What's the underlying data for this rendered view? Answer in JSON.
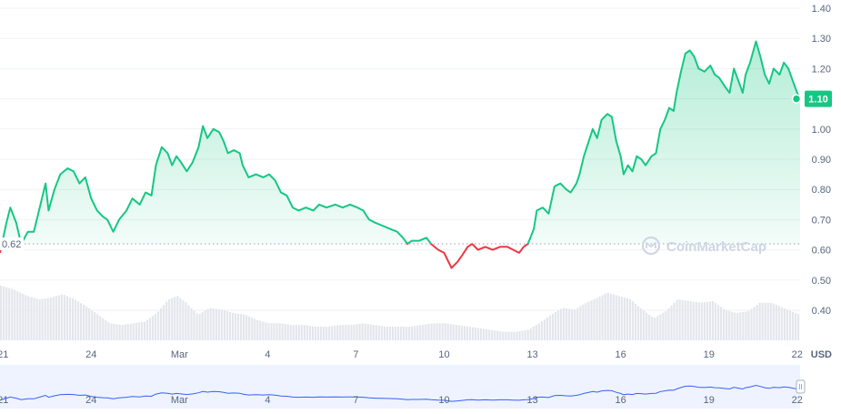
{
  "chart_data": {
    "type": "line",
    "y_unit": "USD",
    "ylim": [
      0.3,
      1.4
    ],
    "y_ticks": [
      "1.40",
      "1.30",
      "1.20",
      "1.10",
      "1.00",
      "0.90",
      "0.80",
      "0.70",
      "0.60",
      "0.50",
      "0.40"
    ],
    "x_ticks": [
      {
        "label": "21",
        "day": 0
      },
      {
        "label": "24",
        "day": 3
      },
      {
        "label": "Mar",
        "day": 6
      },
      {
        "label": "4",
        "day": 9
      },
      {
        "label": "7",
        "day": 12
      },
      {
        "label": "10",
        "day": 15
      },
      {
        "label": "13",
        "day": 18
      },
      {
        "label": "16",
        "day": 21
      },
      {
        "label": "19",
        "day": 24
      },
      {
        "label": "22",
        "day": 27
      }
    ],
    "x_range_days": [
      -0.1,
      27.1
    ],
    "baseline_value": 0.62,
    "baseline_label": "0.62",
    "current_value": 1.1,
    "current_label": "1.10",
    "price": [
      [
        -0.1,
        0.59
      ],
      [
        0.12,
        0.69
      ],
      [
        0.25,
        0.74
      ],
      [
        0.45,
        0.69
      ],
      [
        0.62,
        0.62
      ],
      [
        0.85,
        0.66
      ],
      [
        1.05,
        0.66
      ],
      [
        1.2,
        0.72
      ],
      [
        1.45,
        0.82
      ],
      [
        1.55,
        0.73
      ],
      [
        1.75,
        0.8
      ],
      [
        1.95,
        0.85
      ],
      [
        2.2,
        0.87
      ],
      [
        2.4,
        0.86
      ],
      [
        2.6,
        0.82
      ],
      [
        2.8,
        0.84
      ],
      [
        3.0,
        0.77
      ],
      [
        3.2,
        0.73
      ],
      [
        3.4,
        0.71
      ],
      [
        3.55,
        0.7
      ],
      [
        3.75,
        0.66
      ],
      [
        3.95,
        0.7
      ],
      [
        4.2,
        0.73
      ],
      [
        4.4,
        0.77
      ],
      [
        4.65,
        0.75
      ],
      [
        4.85,
        0.79
      ],
      [
        5.05,
        0.78
      ],
      [
        5.2,
        0.88
      ],
      [
        5.4,
        0.94
      ],
      [
        5.6,
        0.92
      ],
      [
        5.75,
        0.88
      ],
      [
        5.9,
        0.91
      ],
      [
        6.05,
        0.89
      ],
      [
        6.25,
        0.86
      ],
      [
        6.45,
        0.89
      ],
      [
        6.65,
        0.94
      ],
      [
        6.8,
        1.01
      ],
      [
        6.95,
        0.97
      ],
      [
        7.15,
        1.0
      ],
      [
        7.35,
        0.99
      ],
      [
        7.5,
        0.96
      ],
      [
        7.65,
        0.92
      ],
      [
        7.85,
        0.93
      ],
      [
        8.05,
        0.92
      ],
      [
        8.15,
        0.88
      ],
      [
        8.35,
        0.84
      ],
      [
        8.6,
        0.85
      ],
      [
        8.85,
        0.84
      ],
      [
        9.05,
        0.85
      ],
      [
        9.25,
        0.83
      ],
      [
        9.45,
        0.79
      ],
      [
        9.65,
        0.78
      ],
      [
        9.85,
        0.74
      ],
      [
        10.05,
        0.73
      ],
      [
        10.3,
        0.74
      ],
      [
        10.55,
        0.73
      ],
      [
        10.75,
        0.75
      ],
      [
        11.0,
        0.74
      ],
      [
        11.3,
        0.75
      ],
      [
        11.55,
        0.74
      ],
      [
        11.8,
        0.75
      ],
      [
        12.05,
        0.74
      ],
      [
        12.25,
        0.73
      ],
      [
        12.45,
        0.7
      ],
      [
        12.65,
        0.69
      ],
      [
        12.9,
        0.68
      ],
      [
        13.15,
        0.67
      ],
      [
        13.4,
        0.66
      ],
      [
        13.6,
        0.64
      ],
      [
        13.75,
        0.62
      ],
      [
        13.9,
        0.63
      ],
      [
        14.15,
        0.63
      ],
      [
        14.4,
        0.64
      ],
      [
        14.55,
        0.62
      ],
      [
        14.8,
        0.6
      ],
      [
        15.0,
        0.59
      ],
      [
        15.25,
        0.54
      ],
      [
        15.45,
        0.56
      ],
      [
        15.6,
        0.58
      ],
      [
        15.8,
        0.61
      ],
      [
        15.95,
        0.62
      ],
      [
        16.15,
        0.6
      ],
      [
        16.4,
        0.61
      ],
      [
        16.65,
        0.6
      ],
      [
        16.9,
        0.61
      ],
      [
        17.15,
        0.61
      ],
      [
        17.35,
        0.6
      ],
      [
        17.55,
        0.59
      ],
      [
        17.7,
        0.61
      ],
      [
        17.85,
        0.62
      ],
      [
        18.05,
        0.67
      ],
      [
        18.15,
        0.73
      ],
      [
        18.35,
        0.74
      ],
      [
        18.55,
        0.72
      ],
      [
        18.75,
        0.81
      ],
      [
        18.95,
        0.82
      ],
      [
        19.15,
        0.8
      ],
      [
        19.3,
        0.79
      ],
      [
        19.5,
        0.82
      ],
      [
        19.6,
        0.85
      ],
      [
        19.75,
        0.91
      ],
      [
        19.95,
        0.97
      ],
      [
        20.05,
        1.0
      ],
      [
        20.2,
        0.97
      ],
      [
        20.35,
        1.03
      ],
      [
        20.55,
        1.05
      ],
      [
        20.7,
        1.04
      ],
      [
        20.85,
        0.96
      ],
      [
        21.0,
        0.91
      ],
      [
        21.1,
        0.85
      ],
      [
        21.25,
        0.88
      ],
      [
        21.4,
        0.86
      ],
      [
        21.55,
        0.91
      ],
      [
        21.7,
        0.9
      ],
      [
        21.85,
        0.88
      ],
      [
        22.05,
        0.91
      ],
      [
        22.2,
        0.92
      ],
      [
        22.35,
        1.0
      ],
      [
        22.5,
        1.03
      ],
      [
        22.65,
        1.07
      ],
      [
        22.8,
        1.06
      ],
      [
        22.9,
        1.12
      ],
      [
        23.05,
        1.19
      ],
      [
        23.2,
        1.25
      ],
      [
        23.35,
        1.26
      ],
      [
        23.5,
        1.24
      ],
      [
        23.65,
        1.2
      ],
      [
        23.85,
        1.19
      ],
      [
        24.05,
        1.21
      ],
      [
        24.2,
        1.18
      ],
      [
        24.35,
        1.17
      ],
      [
        24.55,
        1.14
      ],
      [
        24.7,
        1.12
      ],
      [
        24.85,
        1.2
      ],
      [
        25.0,
        1.16
      ],
      [
        25.15,
        1.12
      ],
      [
        25.25,
        1.18
      ],
      [
        25.4,
        1.22
      ],
      [
        25.6,
        1.29
      ],
      [
        25.75,
        1.24
      ],
      [
        25.9,
        1.18
      ],
      [
        26.05,
        1.15
      ],
      [
        26.2,
        1.2
      ],
      [
        26.4,
        1.18
      ],
      [
        26.55,
        1.22
      ],
      [
        26.7,
        1.2
      ],
      [
        26.85,
        1.16
      ],
      [
        27.0,
        1.12
      ],
      [
        27.1,
        1.1
      ]
    ],
    "volume": [
      [
        -0.1,
        0.32
      ],
      [
        0.3,
        0.3
      ],
      [
        0.8,
        0.26
      ],
      [
        1.2,
        0.24
      ],
      [
        1.6,
        0.25
      ],
      [
        2.0,
        0.27
      ],
      [
        2.4,
        0.24
      ],
      [
        2.8,
        0.2
      ],
      [
        3.2,
        0.15
      ],
      [
        3.6,
        0.1
      ],
      [
        4.0,
        0.09
      ],
      [
        4.4,
        0.1
      ],
      [
        4.8,
        0.11
      ],
      [
        5.2,
        0.16
      ],
      [
        5.6,
        0.24
      ],
      [
        5.9,
        0.26
      ],
      [
        6.2,
        0.22
      ],
      [
        6.6,
        0.15
      ],
      [
        7.0,
        0.19
      ],
      [
        7.4,
        0.18
      ],
      [
        7.8,
        0.16
      ],
      [
        8.2,
        0.15
      ],
      [
        8.6,
        0.12
      ],
      [
        9.0,
        0.1
      ],
      [
        9.4,
        0.1
      ],
      [
        9.8,
        0.09
      ],
      [
        10.2,
        0.09
      ],
      [
        10.6,
        0.08
      ],
      [
        11.0,
        0.08
      ],
      [
        11.4,
        0.09
      ],
      [
        11.8,
        0.09
      ],
      [
        12.2,
        0.1
      ],
      [
        12.6,
        0.09
      ],
      [
        13.0,
        0.08
      ],
      [
        13.4,
        0.08
      ],
      [
        13.8,
        0.08
      ],
      [
        14.2,
        0.09
      ],
      [
        14.6,
        0.1
      ],
      [
        15.0,
        0.1
      ],
      [
        15.4,
        0.09
      ],
      [
        15.8,
        0.08
      ],
      [
        16.2,
        0.07
      ],
      [
        16.6,
        0.06
      ],
      [
        17.0,
        0.05
      ],
      [
        17.4,
        0.05
      ],
      [
        17.8,
        0.06
      ],
      [
        18.2,
        0.1
      ],
      [
        18.6,
        0.15
      ],
      [
        19.0,
        0.19
      ],
      [
        19.4,
        0.18
      ],
      [
        19.8,
        0.22
      ],
      [
        20.2,
        0.25
      ],
      [
        20.5,
        0.28
      ],
      [
        20.9,
        0.26
      ],
      [
        21.3,
        0.24
      ],
      [
        21.7,
        0.18
      ],
      [
        22.1,
        0.13
      ],
      [
        22.5,
        0.17
      ],
      [
        22.9,
        0.24
      ],
      [
        23.3,
        0.23
      ],
      [
        23.7,
        0.22
      ],
      [
        24.1,
        0.23
      ],
      [
        24.5,
        0.18
      ],
      [
        24.9,
        0.16
      ],
      [
        25.3,
        0.17
      ],
      [
        25.7,
        0.22
      ],
      [
        26.1,
        0.22
      ],
      [
        26.5,
        0.19
      ],
      [
        26.9,
        0.16
      ],
      [
        27.1,
        0.15
      ]
    ]
  }
}
